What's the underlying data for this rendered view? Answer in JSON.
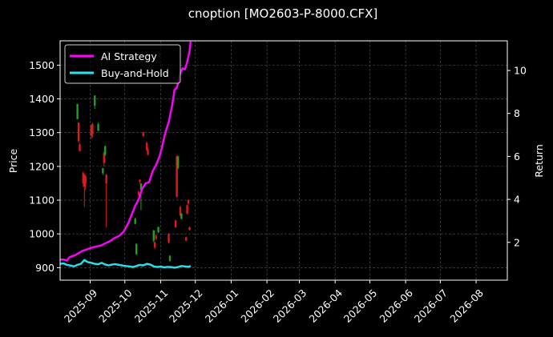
{
  "chart_data": {
    "type": "line",
    "title": "cnoption [MO2603-P-8000.CFX]",
    "ylabel": "Price",
    "ylabel_right": "Return",
    "grid": true,
    "legend_position": "top-left",
    "colors": {
      "background": "#000000",
      "axes": "#ffffff",
      "grid": "#555555",
      "up_candle": "#1fa01f",
      "down_candle": "#e01a1a",
      "ai_strategy": "#ff00ff",
      "buy_and_hold": "#22e5ee"
    },
    "x_axis": {
      "type": "date",
      "range": [
        "2025-08-06",
        "2026-08-28"
      ],
      "tick_labels": [
        "2025-09",
        "2025-10",
        "2025-11",
        "2025-12",
        "2026-01",
        "2026-02",
        "2026-03",
        "2026-04",
        "2026-05",
        "2026-06",
        "2026-07",
        "2026-08"
      ],
      "tick_dates": [
        "2025-09-01",
        "2025-10-01",
        "2025-11-01",
        "2025-12-01",
        "2026-01-01",
        "2026-02-01",
        "2026-03-01",
        "2026-04-01",
        "2026-05-01",
        "2026-06-01",
        "2026-07-01",
        "2026-08-01"
      ]
    },
    "y_left": {
      "range": [
        863,
        1572
      ],
      "ticks": [
        900,
        1000,
        1100,
        1200,
        1300,
        1400,
        1500
      ],
      "tick_labels": [
        "900",
        "1000",
        "1100",
        "1200",
        "1300",
        "1400",
        "1500"
      ]
    },
    "y_right": {
      "range": [
        0.24,
        11.38
      ],
      "ticks": [
        2,
        4,
        6,
        8,
        10
      ],
      "tick_labels": [
        "2",
        "4",
        "6",
        "8",
        "10"
      ]
    },
    "candles": [
      {
        "date": "2025-08-21",
        "open": 1340,
        "close": 1385,
        "high": 1385,
        "low": 1340
      },
      {
        "date": "2025-08-22",
        "open": 1330,
        "close": 1275,
        "high": 1330,
        "low": 1270
      },
      {
        "date": "2025-08-23",
        "open": 1265,
        "close": 1245,
        "high": 1270,
        "low": 1245
      },
      {
        "date": "2025-08-26",
        "open": 1180,
        "close": 1150,
        "high": 1185,
        "low": 1140
      },
      {
        "date": "2025-08-27",
        "open": 1175,
        "close": 1140,
        "high": 1178,
        "low": 1080
      },
      {
        "date": "2025-08-28",
        "open": 1170,
        "close": 1150,
        "high": 1175,
        "low": 1130
      },
      {
        "date": "2025-09-02",
        "open": 1320,
        "close": 1290,
        "high": 1325,
        "low": 1280
      },
      {
        "date": "2025-09-03",
        "open": 1325,
        "close": 1295,
        "high": 1330,
        "low": 1285
      },
      {
        "date": "2025-09-05",
        "open": 1380,
        "close": 1410,
        "high": 1410,
        "low": 1370
      },
      {
        "date": "2025-09-08",
        "open": 1305,
        "close": 1325,
        "high": 1330,
        "low": 1305
      },
      {
        "date": "2025-09-12",
        "open": 1180,
        "close": 1195,
        "high": 1195,
        "low": 1175
      },
      {
        "date": "2025-09-13",
        "open": 1240,
        "close": 1210,
        "high": 1245,
        "low": 1200
      },
      {
        "date": "2025-09-14",
        "open": 1235,
        "close": 1260,
        "high": 1262,
        "low": 1230
      },
      {
        "date": "2025-09-15",
        "open": 1175,
        "close": 1150,
        "high": 1178,
        "low": 1020
      },
      {
        "date": "2025-10-10",
        "open": 1030,
        "close": 1045,
        "high": 1048,
        "low": 1028
      },
      {
        "date": "2025-10-11",
        "open": 940,
        "close": 970,
        "high": 972,
        "low": 938
      },
      {
        "date": "2025-10-13",
        "open": 1125,
        "close": 1115,
        "high": 1128,
        "low": 1112
      },
      {
        "date": "2025-10-14",
        "open": 1160,
        "close": 1155,
        "high": 1162,
        "low": 1150
      },
      {
        "date": "2025-10-15",
        "open": 1130,
        "close": 1150,
        "high": 1150,
        "low": 1070
      },
      {
        "date": "2025-10-17",
        "open": 1300,
        "close": 1290,
        "high": 1302,
        "low": 1288
      },
      {
        "date": "2025-10-20",
        "open": 1270,
        "close": 1250,
        "high": 1272,
        "low": 1245
      },
      {
        "date": "2025-10-21",
        "open": 1250,
        "close": 1235,
        "high": 1255,
        "low": 1232
      },
      {
        "date": "2025-10-26",
        "open": 980,
        "close": 1010,
        "high": 1012,
        "low": 975
      },
      {
        "date": "2025-10-27",
        "open": 975,
        "close": 960,
        "high": 978,
        "low": 955
      },
      {
        "date": "2025-10-28",
        "open": 995,
        "close": 985,
        "high": 998,
        "low": 982
      },
      {
        "date": "2025-10-30",
        "open": 1005,
        "close": 1020,
        "high": 1022,
        "low": 1003
      },
      {
        "date": "2025-11-08",
        "open": 1000,
        "close": 975,
        "high": 1003,
        "low": 972
      },
      {
        "date": "2025-11-09",
        "open": 920,
        "close": 935,
        "high": 937,
        "low": 918
      },
      {
        "date": "2025-11-14",
        "open": 1040,
        "close": 1020,
        "high": 1042,
        "low": 1018
      },
      {
        "date": "2025-11-15",
        "open": 1230,
        "close": 1110,
        "high": 1232,
        "low": 1108
      },
      {
        "date": "2025-11-16",
        "open": 1195,
        "close": 1230,
        "high": 1232,
        "low": 1192
      },
      {
        "date": "2025-11-18",
        "open": 1080,
        "close": 1055,
        "high": 1082,
        "low": 1053
      },
      {
        "date": "2025-11-19",
        "open": 1045,
        "close": 1060,
        "high": 1062,
        "low": 1043
      },
      {
        "date": "2025-11-23",
        "open": 990,
        "close": 980,
        "high": 992,
        "low": 978
      },
      {
        "date": "2025-11-24",
        "open": 1085,
        "close": 1060,
        "high": 1088,
        "low": 1058
      },
      {
        "date": "2025-11-25",
        "open": 1100,
        "close": 1090,
        "high": 1102,
        "low": 1088
      },
      {
        "date": "2025-11-26",
        "open": 1020,
        "close": 1012,
        "high": 1022,
        "low": 1010
      }
    ],
    "series": [
      {
        "name": "AI Strategy",
        "axis": "right",
        "x": [
          "2025-08-06",
          "2025-08-09",
          "2025-08-12",
          "2025-08-14",
          "2025-08-16",
          "2025-08-19",
          "2025-08-22",
          "2025-08-25",
          "2025-08-28",
          "2025-09-02",
          "2025-09-06",
          "2025-09-10",
          "2025-09-14",
          "2025-09-18",
          "2025-09-22",
          "2025-09-26",
          "2025-09-30",
          "2025-10-04",
          "2025-10-07",
          "2025-10-10",
          "2025-10-13",
          "2025-10-16",
          "2025-10-19",
          "2025-10-22",
          "2025-10-25",
          "2025-10-28",
          "2025-10-31",
          "2025-11-02",
          "2025-11-05",
          "2025-11-08",
          "2025-11-11",
          "2025-11-13",
          "2025-11-15",
          "2025-11-17",
          "2025-11-18",
          "2025-11-20",
          "2025-11-22",
          "2025-11-24",
          "2025-11-26",
          "2025-11-27"
        ],
        "y": [
          1.2,
          1.2,
          1.15,
          1.3,
          1.35,
          1.4,
          1.5,
          1.6,
          1.65,
          1.75,
          1.8,
          1.85,
          1.95,
          2.05,
          2.2,
          2.3,
          2.5,
          2.9,
          3.3,
          3.7,
          4.0,
          4.5,
          4.75,
          4.8,
          5.3,
          5.6,
          6.0,
          6.4,
          7.1,
          7.6,
          8.4,
          9.1,
          9.2,
          9.6,
          9.9,
          10.1,
          10.05,
          10.4,
          10.9,
          11.35
        ]
      },
      {
        "name": "Buy-and-Hold",
        "axis": "right",
        "x": [
          "2025-08-06",
          "2025-08-09",
          "2025-08-12",
          "2025-08-15",
          "2025-08-18",
          "2025-08-21",
          "2025-08-24",
          "2025-08-27",
          "2025-08-30",
          "2025-09-02",
          "2025-09-05",
          "2025-09-08",
          "2025-09-11",
          "2025-09-14",
          "2025-09-17",
          "2025-09-20",
          "2025-09-23",
          "2025-09-26",
          "2025-09-29",
          "2025-10-02",
          "2025-10-05",
          "2025-10-08",
          "2025-10-11",
          "2025-10-14",
          "2025-10-17",
          "2025-10-20",
          "2025-10-23",
          "2025-10-26",
          "2025-10-29",
          "2025-11-01",
          "2025-11-04",
          "2025-11-07",
          "2025-11-10",
          "2025-11-13",
          "2025-11-16",
          "2025-11-19",
          "2025-11-22",
          "2025-11-25",
          "2025-11-27"
        ],
        "y": [
          1.0,
          1.02,
          0.95,
          0.92,
          0.88,
          0.95,
          1.0,
          1.18,
          1.08,
          1.05,
          1.0,
          0.98,
          1.05,
          0.97,
          0.93,
          0.97,
          0.98,
          0.95,
          0.92,
          0.9,
          0.88,
          0.85,
          0.9,
          0.95,
          0.93,
          1.0,
          0.97,
          0.88,
          0.85,
          0.87,
          0.84,
          0.86,
          0.85,
          0.82,
          0.85,
          0.9,
          0.88,
          0.86,
          0.9
        ]
      }
    ]
  }
}
